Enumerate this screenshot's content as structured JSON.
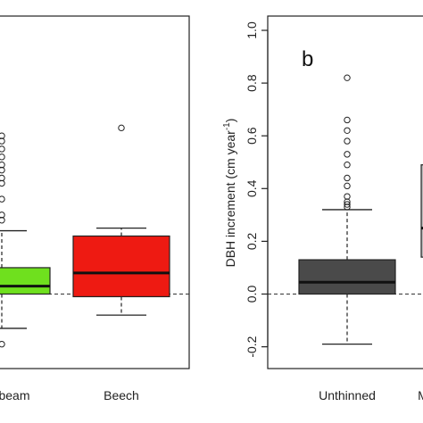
{
  "chart_data": [
    {
      "type": "box",
      "panel_label": "",
      "ylabel": "",
      "categories": [
        "beam",
        "Beech"
      ],
      "colors": [
        "#6FE01E",
        "#EE1A12"
      ],
      "boxes": [
        {
          "name": "beam",
          "q1": 0.0,
          "median": 0.03,
          "q3": 0.1,
          "whisker_low": -0.13,
          "whisker_high": 0.24,
          "outliers": [
            0.28,
            0.3,
            0.36,
            0.42,
            0.44,
            0.47,
            0.49,
            0.52,
            0.55,
            0.58,
            0.6,
            -0.19
          ]
        },
        {
          "name": "Beech",
          "q1": -0.01,
          "median": 0.08,
          "q3": 0.22,
          "whisker_low": -0.08,
          "whisker_high": 0.25,
          "outliers": [
            0.63
          ]
        }
      ],
      "reference_line": 0.0
    },
    {
      "type": "box",
      "panel_label": "b",
      "ylabel": "DBH increment (cm year-1)",
      "ylim": [
        -0.28,
        1.08
      ],
      "yticks": [
        "-0.2",
        "0.0",
        "0.2",
        "0.4",
        "0.6",
        "0.8",
        "1.0"
      ],
      "ytick_values": [
        -0.2,
        0.0,
        0.2,
        0.4,
        0.6,
        0.8,
        1.0
      ],
      "categories": [
        "Unthinned",
        "M"
      ],
      "colors": [
        "#4A4A4A",
        "#BDBDBD"
      ],
      "boxes": [
        {
          "name": "Unthinned",
          "q1": 0.0,
          "median": 0.045,
          "q3": 0.13,
          "whisker_low": -0.19,
          "whisker_high": 0.32,
          "outliers": [
            0.33,
            0.34,
            0.35,
            0.37,
            0.41,
            0.44,
            0.49,
            0.53,
            0.58,
            0.62,
            0.66,
            0.82
          ]
        },
        {
          "name": "M",
          "q1": 0.14,
          "median": 0.25,
          "q3": 0.49,
          "whisker_low": 0.14,
          "whisker_high": 0.49,
          "outliers": []
        }
      ],
      "reference_line": 0.0
    }
  ],
  "text": {
    "ylabel_main": "DBH increment (cm year",
    "ylabel_sup": "-1",
    "ylabel_end": ")"
  }
}
